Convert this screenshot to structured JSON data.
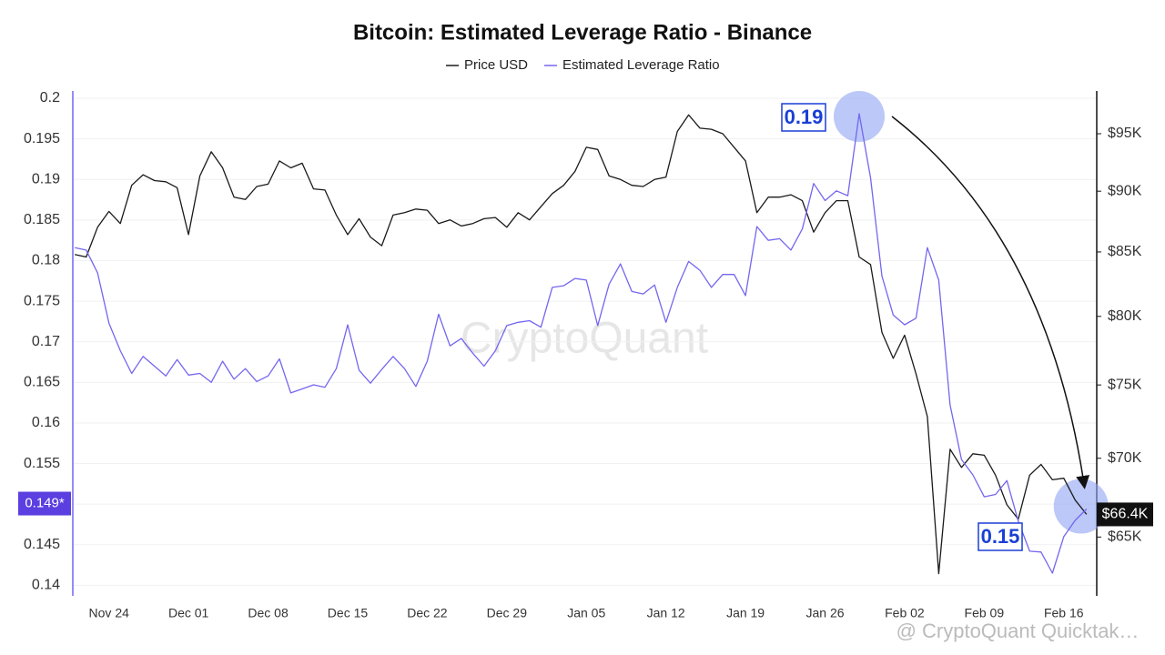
{
  "chart_data": {
    "type": "line",
    "title": "Bitcoin: Estimated Leverage Ratio - Binance",
    "watermark": "CryptoQuant",
    "footer": "@ CryptoQuant Quicktak…",
    "annotations": [
      "0.19",
      "0.15"
    ],
    "categories": [
      null,
      null,
      null,
      "Nov 24",
      null,
      null,
      null,
      null,
      null,
      null,
      "Dec 01",
      null,
      null,
      null,
      null,
      null,
      null,
      "Dec 08",
      null,
      null,
      null,
      null,
      null,
      null,
      "Dec 15",
      null,
      null,
      null,
      null,
      null,
      null,
      "Dec 22",
      null,
      null,
      null,
      null,
      null,
      null,
      "Dec 29",
      null,
      null,
      null,
      null,
      null,
      null,
      "Jan 05",
      null,
      null,
      null,
      null,
      null,
      null,
      "Jan 12",
      null,
      null,
      null,
      null,
      null,
      null,
      "Jan 19",
      null,
      null,
      null,
      null,
      null,
      null,
      "Jan 26",
      null,
      null,
      null,
      null,
      null,
      null,
      "Feb 02",
      null,
      null,
      null,
      null,
      null,
      null,
      "Feb 09",
      null,
      null,
      null,
      null,
      null,
      null,
      "Feb 16",
      null,
      null
    ],
    "series": [
      {
        "name": "Price USD",
        "color": "#1a1a1a",
        "axis": "y2",
        "values": [
          84800,
          84600,
          87000,
          88300,
          87300,
          90500,
          91400,
          90900,
          90800,
          90300,
          86400,
          91300,
          93400,
          92000,
          89500,
          89300,
          90400,
          90600,
          92600,
          92000,
          92400,
          90200,
          90100,
          88000,
          86400,
          87700,
          86200,
          85500,
          88000,
          88200,
          88500,
          88400,
          87300,
          87600,
          87100,
          87300,
          87700,
          87800,
          87000,
          88200,
          87600,
          88700,
          89800,
          90500,
          91700,
          93800,
          93600,
          91300,
          91000,
          90500,
          90400,
          91000,
          91200,
          95200,
          96700,
          95500,
          95400,
          95000,
          93800,
          92600,
          88200,
          89500,
          89500,
          89700,
          89200,
          86600,
          88200,
          89200,
          89200,
          84600,
          84000,
          78800,
          76900,
          78600,
          75800,
          72800,
          62800,
          70600,
          69400,
          70300,
          70200,
          68900,
          67000,
          66100,
          68900,
          69600,
          68600,
          68700,
          67300,
          66400
        ],
        "value_labels": [
          null,
          null,
          null,
          null,
          null,
          null,
          null,
          null,
          null,
          null,
          null,
          null,
          null,
          null,
          null,
          null,
          null,
          null,
          null,
          null,
          null,
          null,
          null,
          null,
          null,
          null,
          null,
          null,
          null,
          null,
          null,
          null,
          null,
          null,
          null,
          null,
          null,
          null,
          null,
          null,
          null,
          null,
          null,
          null,
          null,
          null,
          null,
          null,
          null,
          null,
          null,
          null,
          null,
          null,
          null,
          null,
          null,
          null,
          null,
          null,
          null,
          null,
          null,
          null,
          null,
          null,
          null,
          null,
          null,
          null,
          null,
          null,
          null,
          null,
          null,
          null,
          null,
          null,
          null,
          null,
          null,
          null,
          null,
          null,
          null,
          null,
          null,
          null,
          null,
          "$66.4K"
        ]
      },
      {
        "name": "Estimated Leverage Ratio",
        "color": "#7466f0",
        "axis": "y",
        "values": [
          0.1816,
          0.1813,
          0.1785,
          0.1723,
          0.1689,
          0.1661,
          0.1682,
          0.167,
          0.1658,
          0.1678,
          0.1659,
          0.1661,
          0.165,
          0.1676,
          0.1654,
          0.1667,
          0.1651,
          0.1658,
          0.1679,
          0.1637,
          0.1642,
          0.1647,
          0.1644,
          0.1667,
          0.1721,
          0.1665,
          0.1649,
          0.1666,
          0.1682,
          0.1667,
          0.1645,
          0.1676,
          0.1734,
          0.1695,
          0.1704,
          0.1686,
          0.167,
          0.1689,
          0.172,
          0.1724,
          0.1726,
          0.1718,
          0.1767,
          0.1769,
          0.1778,
          0.1776,
          0.172,
          0.1771,
          0.1796,
          0.1762,
          0.1759,
          0.177,
          0.1724,
          0.1767,
          0.1799,
          0.1788,
          0.1767,
          0.1783,
          0.1783,
          0.1757,
          0.1842,
          0.1825,
          0.1827,
          0.1813,
          0.1839,
          0.1895,
          0.1874,
          0.1886,
          0.188,
          0.1981,
          0.1902,
          0.1781,
          0.1733,
          0.1721,
          0.1729,
          0.1816,
          0.1776,
          0.1622,
          0.1555,
          0.1536,
          0.1509,
          0.1512,
          0.1529,
          0.1479,
          0.1442,
          0.1441,
          0.1415,
          0.146,
          0.148,
          0.1494
        ],
        "value_labels": [
          null,
          null,
          null,
          null,
          null,
          null,
          null,
          null,
          null,
          null,
          null,
          null,
          null,
          null,
          null,
          null,
          null,
          null,
          null,
          null,
          null,
          null,
          null,
          null,
          null,
          null,
          null,
          null,
          null,
          null,
          null,
          null,
          null,
          null,
          null,
          null,
          null,
          null,
          null,
          null,
          null,
          null,
          null,
          null,
          null,
          null,
          null,
          null,
          null,
          null,
          null,
          null,
          null,
          null,
          null,
          null,
          null,
          null,
          null,
          null,
          null,
          null,
          null,
          null,
          null,
          null,
          null,
          null,
          null,
          null,
          null,
          null,
          null,
          null,
          null,
          null,
          null,
          null,
          null,
          null,
          null,
          null,
          null,
          null,
          null,
          null,
          null,
          null,
          null,
          "0.149*"
        ]
      }
    ],
    "ylim": [
      0.1387,
      0.2009
    ],
    "yticks": [
      0.14,
      0.145,
      0.15,
      0.155,
      0.16,
      0.165,
      0.17,
      0.175,
      0.18,
      0.185,
      0.19,
      0.195,
      0.2
    ],
    "y2lim": [
      61500,
      98900
    ],
    "y2log": true,
    "y2ticks": [
      {
        "value": 65000,
        "label": "$65K"
      },
      {
        "value": 70000,
        "label": "$70K"
      },
      {
        "value": 75000,
        "label": "$75K"
      },
      {
        "value": 80000,
        "label": "$80K"
      },
      {
        "value": 85000,
        "label": "$85K"
      },
      {
        "value": 90000,
        "label": "$90K"
      },
      {
        "value": 95000,
        "label": "$95K"
      }
    ],
    "grid": true
  }
}
